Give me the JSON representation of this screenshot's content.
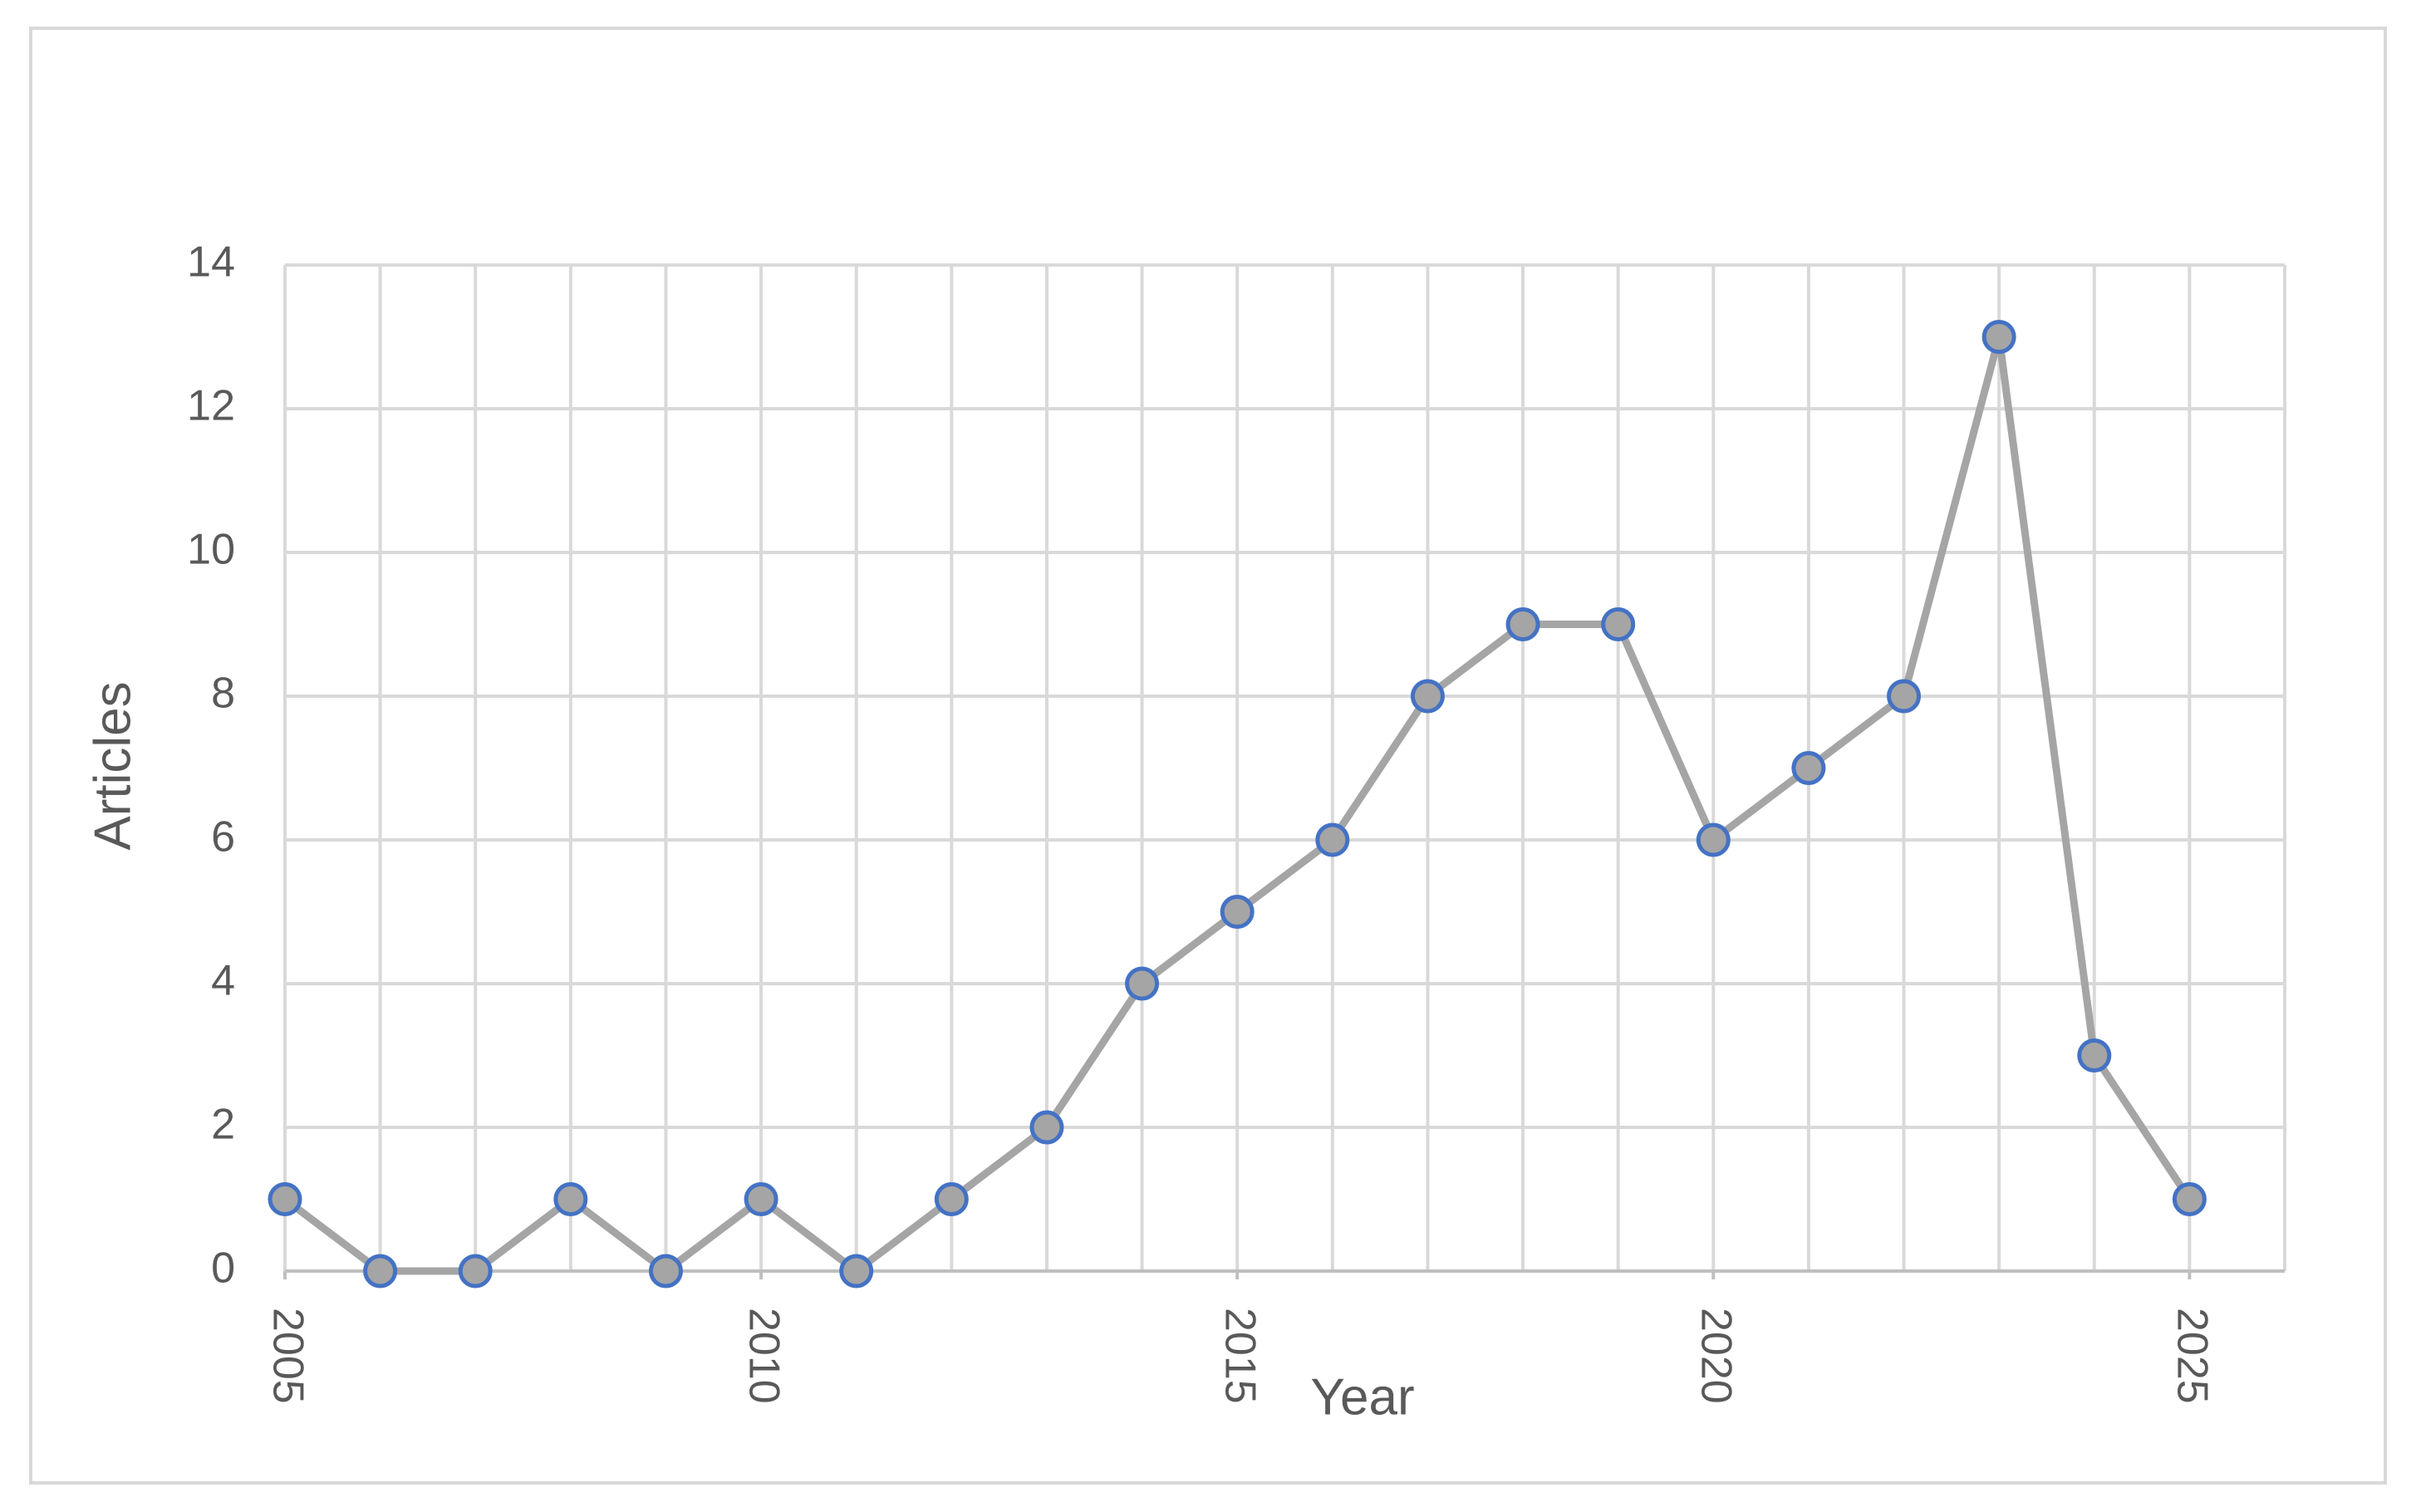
{
  "chart_data": {
    "type": "line",
    "x_label": "Year",
    "y_label": "Articles",
    "x": [
      2005,
      2006,
      2007,
      2008,
      2009,
      2010,
      2011,
      2012,
      2013,
      2014,
      2015,
      2016,
      2017,
      2018,
      2019,
      2020,
      2021,
      2022,
      2023,
      2024,
      2025
    ],
    "series": [
      {
        "color": "#a5a5a5",
        "marker_edge": "#4472c4",
        "values": [
          1,
          0,
          0,
          1,
          0,
          1,
          0,
          1,
          2,
          4,
          5,
          6,
          8,
          9,
          9,
          6,
          7,
          8,
          13,
          3,
          1
        ]
      }
    ],
    "xlim": [
      2005,
      2026
    ],
    "xticks": [
      2005,
      2010,
      2015,
      2020,
      2025
    ],
    "ylim": [
      0,
      14
    ],
    "yticks": [
      0,
      2,
      4,
      6,
      8,
      10,
      12,
      14
    ],
    "grid": true
  }
}
